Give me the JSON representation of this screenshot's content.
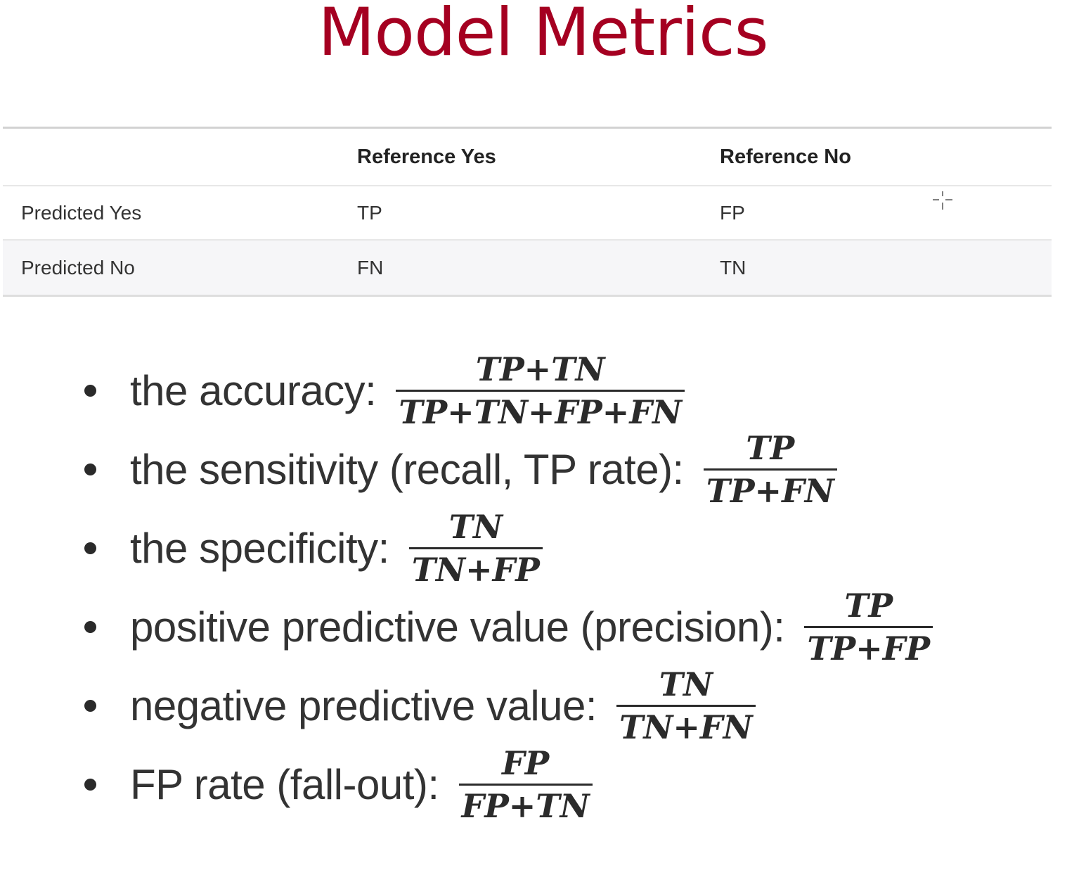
{
  "page": {
    "title": "Model Metrics",
    "title_color": "#a50021"
  },
  "confusion_matrix": {
    "headers": [
      "",
      "Reference Yes",
      "Reference No"
    ],
    "rows": [
      [
        "Predicted Yes",
        "TP",
        "FP"
      ],
      [
        "Predicted No",
        "FN",
        "TN"
      ]
    ]
  },
  "metrics": [
    {
      "label": "the accuracy:",
      "numerator": "TP+TN",
      "denominator": "TP+TN+FP+FN"
    },
    {
      "label": "the sensitivity (recall, TP rate):",
      "numerator": "TP",
      "denominator": "TP+FN"
    },
    {
      "label": "the specificity:",
      "numerator": "TN",
      "denominator": "TN+FP"
    },
    {
      "label": "positive predictive value (precision):",
      "numerator": "TP",
      "denominator": "TP+FP"
    },
    {
      "label": "negative predictive value:",
      "numerator": "TN",
      "denominator": "TN+FN"
    },
    {
      "label": "FP rate (fall-out):",
      "numerator": "FP",
      "denominator": "FP+TN"
    }
  ],
  "cursor": {
    "icon": "crosshair-cursor-icon"
  }
}
